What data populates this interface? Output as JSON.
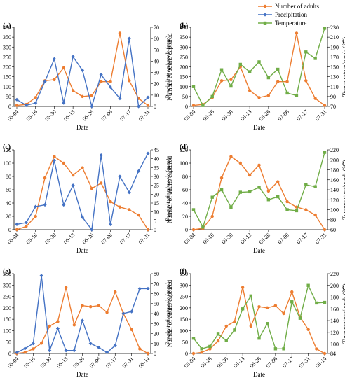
{
  "legend": {
    "items": [
      {
        "label": "Number of adults",
        "color": "#ED7D31",
        "marker": "circle"
      },
      {
        "label": "Precipitation",
        "color": "#4472C4",
        "marker": "diamond"
      },
      {
        "label": "Temperature",
        "color": "#70AD47",
        "marker": "square"
      }
    ]
  },
  "chart_data": [
    {
      "panel": "(a)",
      "type": "line",
      "xlabel": "Date",
      "ylabel": "Number of adults captured",
      "y2label": "Precipitation/week (mm)",
      "ylim": [
        0,
        400
      ],
      "yticks": [
        0,
        50,
        100,
        150,
        200,
        250,
        300,
        350,
        400
      ],
      "y2lim": [
        0,
        70
      ],
      "y2ticks": [
        0,
        10,
        20,
        30,
        40,
        50,
        60,
        70
      ],
      "x_tick_labels": [
        "05-04",
        "05-16",
        "05-30",
        "06-13",
        "06-26",
        "07-06",
        "07-17",
        "07-31"
      ],
      "x_tick_index": [
        0,
        2,
        4,
        6,
        8,
        10,
        12,
        14
      ],
      "series": [
        {
          "name": "Number of adults",
          "axis": "left",
          "color": "#ED7D31",
          "values": [
            5,
            10,
            45,
            130,
            135,
            195,
            80,
            50,
            55,
            125,
            125,
            370,
            130,
            40,
            5
          ]
        },
        {
          "name": "Precipitation",
          "axis": "right",
          "color": "#4472C4",
          "values": [
            6,
            1,
            3,
            22,
            42,
            3,
            44,
            32,
            0,
            28,
            17,
            7,
            60,
            0,
            8
          ]
        }
      ]
    },
    {
      "panel": "(b)",
      "type": "line",
      "xlabel": "Date",
      "ylabel": "Number of adults captured",
      "y2label": "Temperature/week (℃)",
      "ylim": [
        0,
        400
      ],
      "yticks": [
        0,
        50,
        100,
        150,
        200,
        250,
        300,
        350,
        400
      ],
      "y2lim": [
        70,
        230
      ],
      "y2ticks": [
        70,
        90,
        110,
        130,
        150,
        170,
        190,
        210,
        230
      ],
      "x_tick_labels": [
        "05-04",
        "05-16",
        "05-30",
        "06-13",
        "06-26",
        "07-06",
        "07-17",
        "07-31"
      ],
      "x_tick_index": [
        0,
        2,
        4,
        6,
        8,
        10,
        12,
        14
      ],
      "series": [
        {
          "name": "Number of adults",
          "axis": "left",
          "color": "#ED7D31",
          "values": [
            5,
            10,
            45,
            130,
            135,
            200,
            80,
            45,
            55,
            125,
            125,
            370,
            130,
            40,
            5
          ]
        },
        {
          "name": "Temperature",
          "axis": "right",
          "color": "#70AD47",
          "values": [
            110,
            72,
            90,
            144,
            111,
            155,
            140,
            160,
            128,
            145,
            97,
            92,
            180,
            167,
            228
          ]
        }
      ]
    },
    {
      "panel": "(c)",
      "type": "line",
      "xlabel": "Date",
      "ylabel": "Number of adults captured",
      "y2label": "Precipitation/week (mm)",
      "ylim": [
        0,
        120
      ],
      "yticks": [
        0,
        20,
        40,
        60,
        80,
        100,
        120
      ],
      "y2lim": [
        0,
        45
      ],
      "y2ticks": [
        0,
        5,
        10,
        15,
        20,
        25,
        30,
        35,
        40,
        45
      ],
      "x_tick_labels": [
        "05-04",
        "05-16",
        "05-30",
        "06-13",
        "06-26",
        "07-06",
        "07-17",
        "07-31"
      ],
      "x_tick_index": [
        0,
        2,
        4,
        6,
        8,
        10,
        12,
        14
      ],
      "series": [
        {
          "name": "Number of adults",
          "axis": "left",
          "color": "#ED7D31",
          "values": [
            0,
            5,
            20,
            78,
            110,
            100,
            82,
            93,
            62,
            70,
            42,
            34,
            30,
            22,
            0
          ]
        },
        {
          "name": "Precipitation",
          "axis": "right",
          "color": "#4472C4",
          "values": [
            3,
            4,
            13,
            14,
            39,
            14,
            25,
            7,
            0,
            42,
            3,
            30,
            21,
            33,
            43
          ]
        }
      ]
    },
    {
      "panel": "(d)",
      "type": "line",
      "xlabel": "Date",
      "ylabel": "Number of adults captured",
      "y2label": "Temperature/week (℃)",
      "ylim": [
        0,
        120
      ],
      "yticks": [
        0,
        20,
        40,
        60,
        80,
        100,
        120
      ],
      "y2lim": [
        60,
        220
      ],
      "y2ticks": [
        60,
        80,
        100,
        120,
        140,
        160,
        180,
        200,
        220
      ],
      "x_tick_labels": [
        "05-04",
        "05-16",
        "05-30",
        "06-13",
        "06-26",
        "07-06",
        "07-17",
        "07-31"
      ],
      "x_tick_index": [
        0,
        2,
        4,
        6,
        8,
        10,
        12,
        14
      ],
      "series": [
        {
          "name": "Number of adults",
          "axis": "left",
          "color": "#ED7D31",
          "values": [
            0,
            2,
            20,
            78,
            110,
            100,
            82,
            97,
            58,
            72,
            42,
            34,
            30,
            22,
            0
          ]
        },
        {
          "name": "Temperature",
          "axis": "right",
          "color": "#70AD47",
          "values": [
            100,
            65,
            125,
            140,
            105,
            135,
            136,
            145,
            120,
            126,
            100,
            98,
            150,
            146,
            215
          ]
        }
      ]
    },
    {
      "panel": "(e)",
      "type": "line",
      "xlabel": "Date",
      "ylabel": "Number of adults captured",
      "y2label": "Precipitation/week (mm)",
      "ylim": [
        0,
        350
      ],
      "yticks": [
        0,
        50,
        100,
        150,
        200,
        250,
        300,
        350
      ],
      "y2lim": [
        0,
        80
      ],
      "y2ticks": [
        0,
        10,
        20,
        30,
        40,
        50,
        60,
        70,
        80
      ],
      "x_tick_labels": [
        "05-04",
        "05-16",
        "05-30",
        "06-13",
        "06-26",
        "07-06",
        "07-17",
        "07-31",
        "08-14"
      ],
      "x_tick_index": [
        0,
        2,
        4,
        6,
        8,
        10,
        12,
        14,
        16
      ],
      "series": [
        {
          "name": "Number of adults",
          "axis": "left",
          "color": "#ED7D31",
          "values": [
            0,
            5,
            20,
            45,
            120,
            140,
            290,
            125,
            210,
            205,
            210,
            180,
            270,
            175,
            105,
            20,
            0
          ]
        },
        {
          "name": "Precipitation",
          "axis": "right",
          "color": "#4472C4",
          "values": [
            1,
            5,
            10,
            78,
            3,
            25,
            3,
            3,
            33,
            10,
            6,
            1,
            8,
            40,
            42,
            65,
            65
          ]
        }
      ]
    },
    {
      "panel": "(f)",
      "type": "line",
      "xlabel": "Date",
      "ylabel": "Number of adults captured",
      "y2label": "Temperature/week (℃)",
      "ylim": [
        0,
        350
      ],
      "yticks": [
        0,
        50,
        100,
        150,
        200,
        250,
        300,
        350
      ],
      "y2lim": [
        84,
        220
      ],
      "y2ticks": [
        84,
        100,
        120,
        140,
        160,
        180,
        200,
        220
      ],
      "x_tick_labels": [
        "05-04",
        "05-16",
        "05-30",
        "06-13",
        "06-26",
        "07-06",
        "07-17",
        "07-31",
        "08-14"
      ],
      "x_tick_index": [
        0,
        2,
        4,
        6,
        8,
        10,
        12,
        14,
        16
      ],
      "series": [
        {
          "name": "Number of adults",
          "axis": "left",
          "color": "#ED7D31",
          "values": [
            0,
            5,
            20,
            55,
            120,
            140,
            290,
            120,
            205,
            200,
            210,
            175,
            270,
            160,
            105,
            20,
            0
          ]
        },
        {
          "name": "Temperature",
          "axis": "right",
          "color": "#70AD47",
          "values": [
            110,
            92,
            96,
            117,
            106,
            124,
            160,
            182,
            110,
            135,
            92,
            92,
            172,
            144,
            200,
            170,
            171
          ]
        }
      ]
    }
  ]
}
